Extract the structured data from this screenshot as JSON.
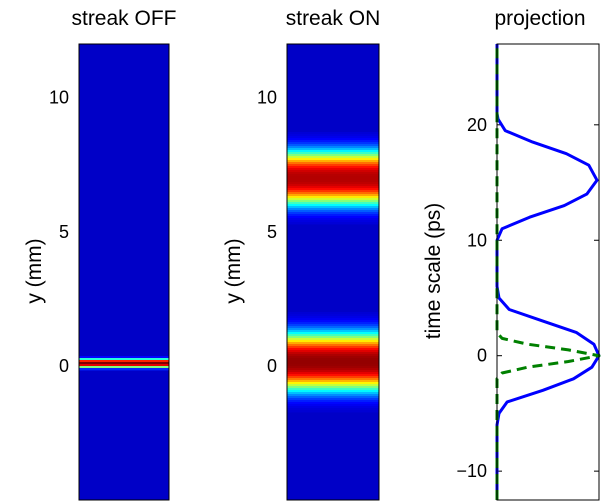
{
  "colors": {
    "colormap": "jet",
    "background_blue": "#00008f",
    "projection_on": "#0000ff",
    "projection_off": "#008000"
  },
  "chart_data": [
    {
      "type": "heatmap",
      "title": "streak OFF",
      "ylabel": "y (mm)",
      "yticks": [
        0,
        5,
        10
      ],
      "ytick_labels": [
        "0",
        "5",
        "10"
      ],
      "ylim": [
        -5,
        12
      ],
      "bands": [
        {
          "center": 0.1,
          "sigma": 0.12,
          "peak": 1.0
        }
      ]
    },
    {
      "type": "heatmap",
      "title": "streak ON",
      "ylabel": "y (mm)",
      "yticks": [
        0,
        5,
        10
      ],
      "ytick_labels": [
        "0",
        "5",
        "10"
      ],
      "ylim": [
        -5,
        12
      ],
      "bands": [
        {
          "center": 0.15,
          "sigma": 0.8,
          "peak": 0.98
        },
        {
          "center": 7.0,
          "sigma": 0.75,
          "peak": 0.95
        }
      ]
    },
    {
      "type": "line",
      "title": "projection",
      "ylabel": "time scale (ps)",
      "yticks": [
        -10,
        0,
        10,
        20
      ],
      "ytick_labels": [
        "−10",
        "0",
        "10",
        "20"
      ],
      "ylim": [
        -12.5,
        27
      ],
      "xlim": [
        0,
        1
      ],
      "series": [
        {
          "style": "solid",
          "color": "#0000ff",
          "points": [
            {
              "y": -12.5,
              "x": 0.0
            },
            {
              "y": -6.0,
              "x": 0.0
            },
            {
              "y": -5.0,
              "x": 0.02
            },
            {
              "y": -4.0,
              "x": 0.1
            },
            {
              "y": -3.0,
              "x": 0.45
            },
            {
              "y": -2.0,
              "x": 0.75
            },
            {
              "y": -1.0,
              "x": 0.93
            },
            {
              "y": 0.0,
              "x": 1.0
            },
            {
              "y": 1.0,
              "x": 0.95
            },
            {
              "y": 2.0,
              "x": 0.78
            },
            {
              "y": 3.0,
              "x": 0.45
            },
            {
              "y": 4.0,
              "x": 0.12
            },
            {
              "y": 5.0,
              "x": 0.02
            },
            {
              "y": 6.0,
              "x": 0.0
            },
            {
              "y": 10.0,
              "x": 0.0
            },
            {
              "y": 11.0,
              "x": 0.05
            },
            {
              "y": 12.0,
              "x": 0.32
            },
            {
              "y": 13.0,
              "x": 0.66
            },
            {
              "y": 14.0,
              "x": 0.88
            },
            {
              "y": 15.2,
              "x": 0.98
            },
            {
              "y": 16.5,
              "x": 0.9
            },
            {
              "y": 17.5,
              "x": 0.68
            },
            {
              "y": 18.5,
              "x": 0.35
            },
            {
              "y": 19.5,
              "x": 0.08
            },
            {
              "y": 20.5,
              "x": 0.01
            },
            {
              "y": 21.0,
              "x": 0.0
            },
            {
              "y": 27.0,
              "x": 0.0
            }
          ]
        },
        {
          "style": "dashed",
          "color": "#008000",
          "points": [
            {
              "y": -12.5,
              "x": 0.0
            },
            {
              "y": -2.0,
              "x": 0.0
            },
            {
              "y": -1.5,
              "x": 0.05
            },
            {
              "y": -1.0,
              "x": 0.3
            },
            {
              "y": -0.5,
              "x": 0.7
            },
            {
              "y": 0.0,
              "x": 1.0
            },
            {
              "y": 0.5,
              "x": 0.7
            },
            {
              "y": 1.0,
              "x": 0.3
            },
            {
              "y": 1.5,
              "x": 0.05
            },
            {
              "y": 2.0,
              "x": 0.0
            },
            {
              "y": 27.0,
              "x": 0.0
            }
          ]
        }
      ]
    }
  ]
}
